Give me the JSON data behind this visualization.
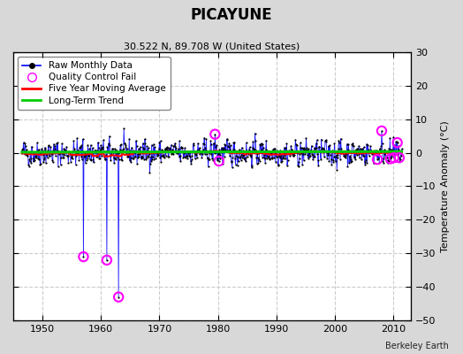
{
  "title": "PICAYUNE",
  "subtitle": "30.522 N, 89.708 W (United States)",
  "ylabel": "Temperature Anomaly (°C)",
  "attribution": "Berkeley Earth",
  "xlim": [
    1945,
    2013
  ],
  "ylim": [
    -50,
    30
  ],
  "yticks": [
    -50,
    -40,
    -30,
    -20,
    -10,
    0,
    10,
    20,
    30
  ],
  "xticks": [
    1950,
    1960,
    1970,
    1980,
    1990,
    2000,
    2010
  ],
  "fig_bg_color": "#d8d8d8",
  "plot_bg_color": "#ffffff",
  "grid_color": "#cccccc",
  "raw_color": "#0000ff",
  "dot_color": "#000000",
  "ma_color": "#ff0000",
  "trend_color": "#00cc00",
  "qc_color": "#ff00ff",
  "seed": 42,
  "n_months": 780,
  "start_year": 1946.5,
  "outlier_indices": [
    126,
    174,
    198
  ],
  "outlier_values": [
    -31.0,
    -32.0,
    -43.0
  ],
  "noise_scale": 1.8
}
